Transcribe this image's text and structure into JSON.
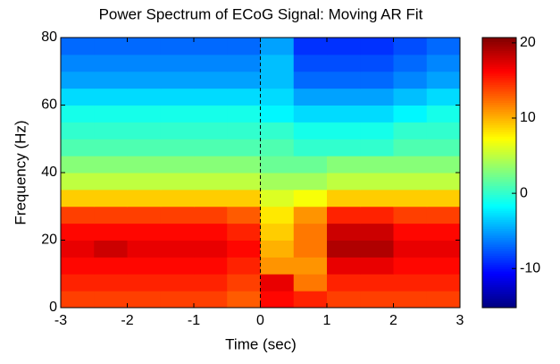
{
  "chart_data": {
    "type": "heatmap",
    "title": "Power Spectrum of ECoG Signal: Moving AR Fit",
    "x_label": "Time (sec)",
    "y_label": "Frequency (Hz)",
    "x": [
      -2.75,
      -2.25,
      -1.75,
      -1.25,
      -0.75,
      -0.25,
      0.25,
      0.75,
      1.25,
      1.75,
      2.25,
      2.75
    ],
    "y": [
      2.5,
      7.5,
      12.5,
      17.5,
      22.5,
      27.5,
      32.5,
      37.5,
      42.5,
      47.5,
      52.5,
      57.5,
      62.5,
      67.5,
      72.5,
      77.5
    ],
    "values": [
      [
        14,
        14,
        14,
        14,
        14,
        13,
        16,
        15,
        14,
        14,
        14,
        14
      ],
      [
        15,
        15,
        15,
        15,
        15,
        14,
        17,
        12,
        15,
        15,
        15,
        15
      ],
      [
        16,
        16,
        16,
        16,
        16,
        15,
        11,
        11,
        17,
        17,
        16,
        16
      ],
      [
        17,
        18,
        17,
        17,
        17,
        16,
        10,
        12,
        19,
        19,
        17,
        17
      ],
      [
        16,
        16,
        16,
        16,
        16,
        15,
        9,
        12,
        18,
        18,
        16,
        16
      ],
      [
        14,
        14,
        14,
        14,
        14,
        13,
        8,
        11,
        15,
        15,
        14,
        14
      ],
      [
        9,
        9,
        9,
        9,
        9,
        9,
        6,
        7,
        9,
        9,
        9,
        9
      ],
      [
        5,
        5,
        5,
        5,
        5,
        5,
        4,
        4,
        5,
        5,
        5,
        5
      ],
      [
        3,
        3,
        3,
        3,
        3,
        3,
        2,
        2,
        3,
        3,
        3,
        3
      ],
      [
        1,
        1,
        1,
        1,
        1,
        1,
        1,
        0,
        0,
        0,
        1,
        1
      ],
      [
        0,
        0,
        0,
        0,
        0,
        0,
        0,
        -1,
        -1,
        -1,
        0,
        0
      ],
      [
        -1,
        -1,
        -1,
        -1,
        -1,
        -1,
        -2,
        -3,
        -3,
        -3,
        -2,
        -1
      ],
      [
        -3,
        -3,
        -3,
        -3,
        -3,
        -3,
        -3,
        -5,
        -5,
        -5,
        -4,
        -3
      ],
      [
        -5,
        -5,
        -5,
        -5,
        -5,
        -5,
        -4,
        -7,
        -7,
        -7,
        -6,
        -5
      ],
      [
        -6,
        -6,
        -6,
        -6,
        -6,
        -6,
        -4,
        -8,
        -8,
        -8,
        -7,
        -6
      ],
      [
        -7,
        -7,
        -7,
        -7,
        -7,
        -7,
        -5,
        -9,
        -9,
        -9,
        -8,
        -7
      ]
    ],
    "xlim": [
      -3,
      3
    ],
    "xticks": [
      -3,
      -2,
      -1,
      0,
      1,
      2,
      3
    ],
    "ylim": [
      0,
      80
    ],
    "yticks": [
      0,
      20,
      40,
      60,
      80
    ],
    "clim": [
      -15.2,
      20.7
    ],
    "cticks": [
      -10,
      0,
      10,
      20
    ],
    "colormap": "jet",
    "event_line_x": 0
  }
}
